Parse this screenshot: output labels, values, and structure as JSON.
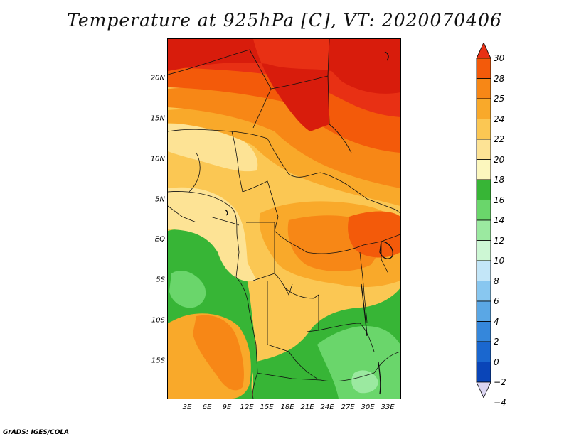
{
  "title": "Temperature at 925hPa [C], VT: 2020070406",
  "footer": "GrADS: IGES/COLA",
  "lat_labels": [
    "20N",
    "15N",
    "10N",
    "5N",
    "EQ",
    "5S",
    "10S",
    "15S"
  ],
  "lon_labels": [
    "3E",
    "6E",
    "9E",
    "12E",
    "15E",
    "18E",
    "21E",
    "24E",
    "27E",
    "30E",
    "33E"
  ],
  "colorbar": {
    "labels": [
      "30",
      "28",
      "25",
      "24",
      "22",
      "20",
      "18",
      "16",
      "14",
      "12",
      "10",
      "8",
      "6",
      "4",
      "2",
      "0",
      "-2",
      "-4"
    ],
    "colors": [
      "#e83014",
      "#f35a0a",
      "#f78716",
      "#f9a92a",
      "#fbc753",
      "#fde395",
      "#fcf7be",
      "#37b536",
      "#6ad66b",
      "#9be9a0",
      "#cdf7d4",
      "#c3e6f8",
      "#88c7f0",
      "#5aa7e5",
      "#3587db",
      "#1a67cf",
      "#0a45b8",
      "#08236f"
    ]
  },
  "fields": {
    "levels": [
      "30",
      "28",
      "25",
      "24",
      "22",
      "20",
      "18",
      "16",
      "14",
      "12"
    ],
    "level_colors": [
      "#d81c0c",
      "#e83014",
      "#f35a0a",
      "#f78716",
      "#f9a92a",
      "#fbc753",
      "#fde395",
      "#37b536",
      "#6ad66b",
      "#9be9a0"
    ]
  }
}
